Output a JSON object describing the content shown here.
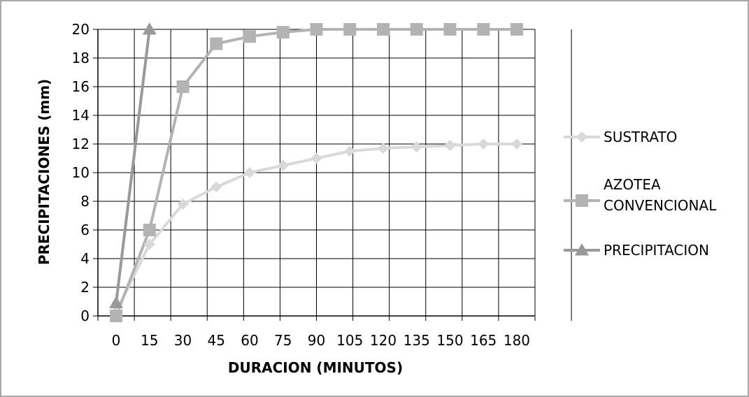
{
  "chart_data": {
    "type": "line",
    "title": "",
    "xlabel": "DURACION (MINUTOS)",
    "ylabel": "PRECIPITACIONES (mm)",
    "x": [
      0,
      15,
      30,
      45,
      60,
      75,
      90,
      105,
      120,
      135,
      150,
      165,
      180
    ],
    "x_tick_labels": [
      "0",
      "15",
      "30",
      "45",
      "60",
      "75",
      "90",
      "105",
      "120",
      "135",
      "150",
      "165",
      "180"
    ],
    "ylim": [
      0,
      20
    ],
    "y_ticks": [
      0,
      2,
      4,
      6,
      8,
      10,
      12,
      14,
      16,
      18,
      20
    ],
    "grid": true,
    "legend_position": "right",
    "series": [
      {
        "name": "SUSTRATO",
        "marker": "diamond",
        "color": "#d9d9d9",
        "points": [
          [
            0,
            0.3
          ],
          [
            15,
            5
          ],
          [
            30,
            7.8
          ],
          [
            45,
            9
          ],
          [
            60,
            10
          ],
          [
            75,
            10.5
          ],
          [
            90,
            11
          ],
          [
            105,
            11.5
          ],
          [
            120,
            11.7
          ],
          [
            135,
            11.8
          ],
          [
            150,
            11.9
          ],
          [
            165,
            12
          ],
          [
            180,
            12
          ]
        ]
      },
      {
        "name": "AZOTEA CONVENCIONAL",
        "legend_lines": [
          "AZOTEA",
          "CONVENCIONAL"
        ],
        "marker": "square",
        "color": "#b3b3b3",
        "points": [
          [
            0,
            0
          ],
          [
            15,
            6
          ],
          [
            30,
            16
          ],
          [
            45,
            19
          ],
          [
            60,
            19.5
          ],
          [
            75,
            19.8
          ],
          [
            90,
            20
          ],
          [
            105,
            20
          ],
          [
            120,
            20
          ],
          [
            135,
            20
          ],
          [
            150,
            20
          ],
          [
            165,
            20
          ],
          [
            180,
            20
          ]
        ]
      },
      {
        "name": "PRECIPITACION",
        "marker": "triangle",
        "color": "#999999",
        "points": [
          [
            0,
            0.9
          ],
          [
            15,
            20
          ]
        ]
      }
    ]
  }
}
